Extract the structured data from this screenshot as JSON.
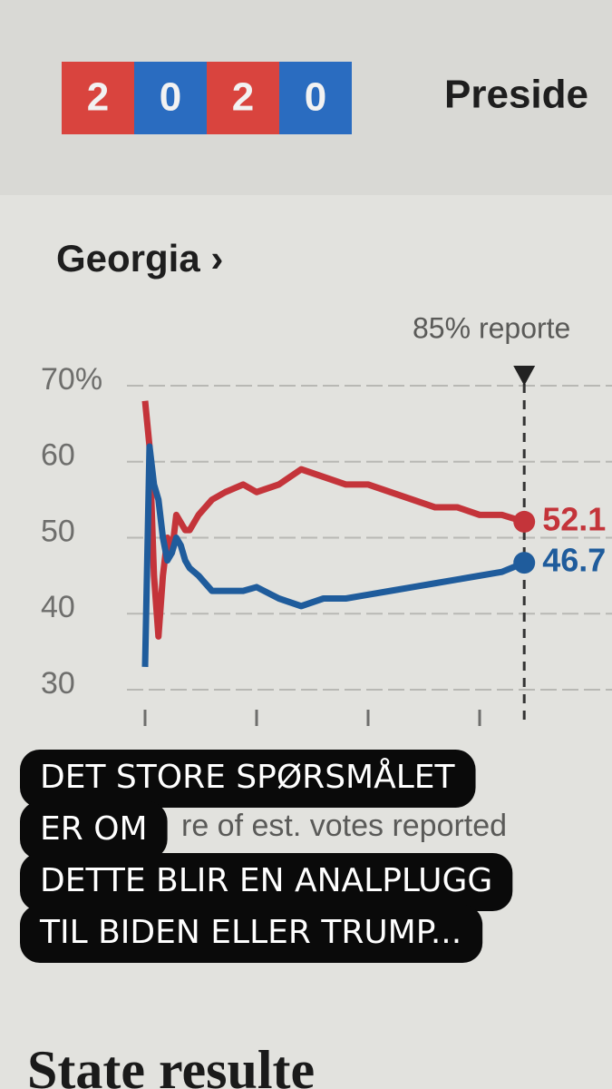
{
  "header": {
    "logo_digits": [
      "2",
      "0",
      "2",
      "0"
    ],
    "title": "Preside"
  },
  "chart_data": {
    "type": "line",
    "title": "Georgia ›",
    "annotation": "85% reporte",
    "x_label": "re of est. votes reported",
    "x": [
      0,
      1,
      2,
      3,
      4,
      5,
      6,
      7,
      8,
      9,
      10,
      12,
      15,
      18,
      22,
      25,
      30,
      35,
      40,
      45,
      50,
      55,
      60,
      65,
      70,
      75,
      80,
      85
    ],
    "series": [
      {
        "color": "#c4343a",
        "values": [
          68,
          62,
          45,
          37,
          45,
          50,
          48,
          53,
          52,
          51,
          51,
          53,
          55,
          56,
          57,
          56,
          57,
          59,
          58,
          57,
          57,
          56,
          55,
          54,
          54,
          53,
          53,
          52.1
        ],
        "value_label": "52.1"
      },
      {
        "color": "#1f5c9c",
        "values": [
          33,
          62,
          57,
          55,
          50,
          47,
          48,
          50,
          49,
          47,
          46,
          45,
          43,
          43,
          43,
          43.5,
          42,
          41,
          42,
          42,
          42.5,
          43,
          43.5,
          44,
          44.5,
          45,
          45.5,
          46.7
        ],
        "value_label": "46.7"
      }
    ],
    "xlim": [
      0,
      100
    ],
    "xticks": [
      0,
      25,
      50,
      75
    ],
    "ylim": [
      30,
      70
    ],
    "yticks": [
      30,
      40,
      50,
      60,
      {
        "value": 70,
        "label": "70%"
      }
    ],
    "grid": true,
    "marker_x": 85
  },
  "caption": {
    "lines": [
      "DET STORE SPØRSMÅLET",
      "ER OM",
      "DETTE BLIR EN ANALPLUGG",
      "TIL BIDEN ELLER TRUMP..."
    ]
  },
  "footer": {
    "title": "State resulte"
  }
}
